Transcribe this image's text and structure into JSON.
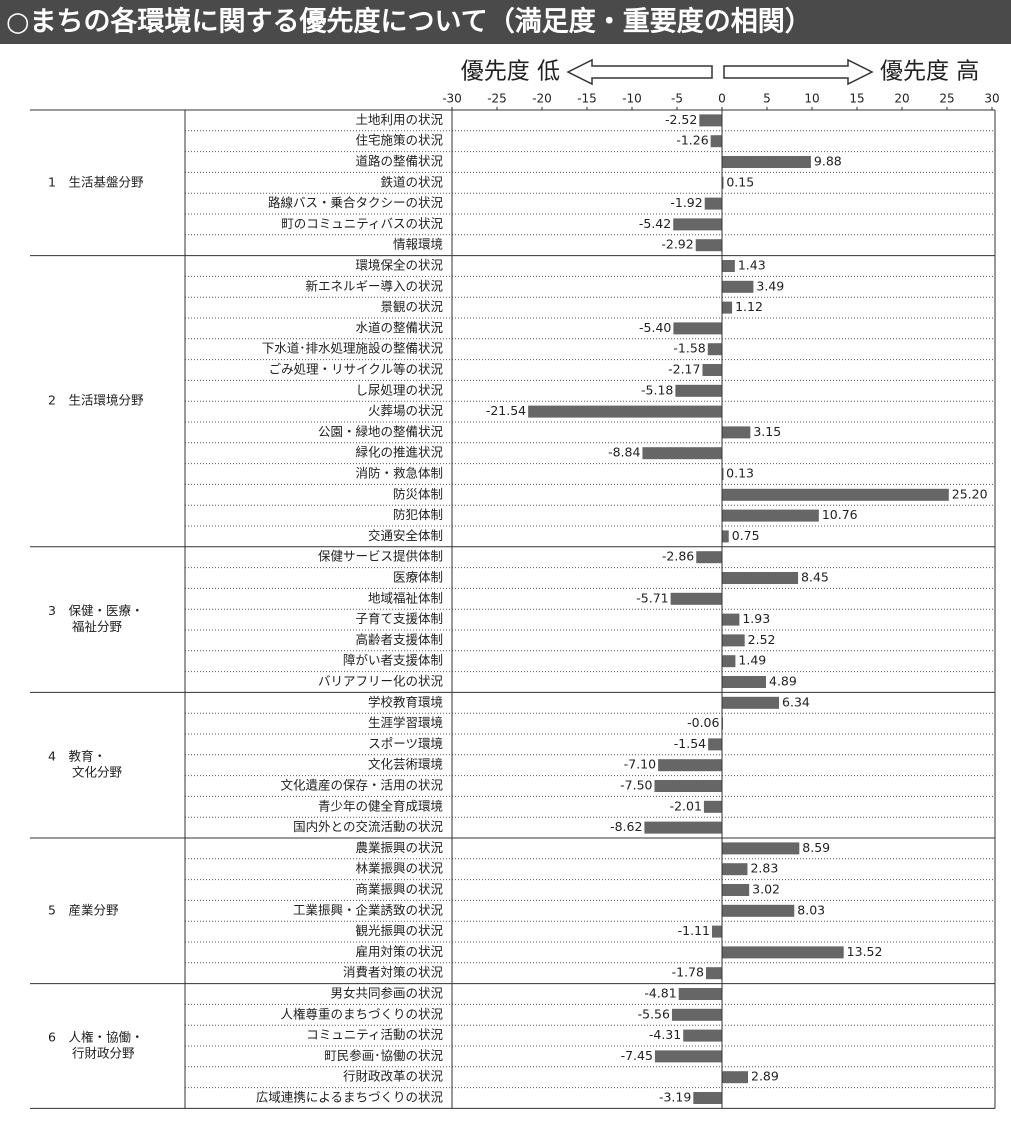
{
  "chart_data": {
    "type": "bar",
    "orientation": "horizontal",
    "title": "○まちの各環境に関する優先度について（満足度・重要度の相関）",
    "low_label": "優先度 低",
    "high_label": "優先度 高",
    "xlim": [
      -30,
      30
    ],
    "xticks": [
      -30,
      -25,
      -20,
      -15,
      -10,
      -5,
      0,
      5,
      10,
      15,
      20,
      25,
      30
    ],
    "color": "#666666",
    "groups": [
      {
        "name": [
          "1　生活基盤分野"
        ],
        "categories": [
          "土地利用の状況",
          "住宅施策の状況",
          "道路の整備状況",
          "鉄道の状況",
          "路線バス・乗合タクシーの状況",
          "町のコミュニティバスの状況",
          "情報環境"
        ],
        "values": [
          -2.52,
          -1.26,
          9.88,
          0.15,
          -1.92,
          -5.42,
          -2.92
        ],
        "value_labels": [
          "-2.52",
          "-1.26",
          "9.88",
          "0.15",
          "-1.92",
          "-5.42",
          "-2.92"
        ]
      },
      {
        "name": [
          "2　生活環境分野"
        ],
        "categories": [
          "環境保全の状況",
          "新エネルギー導入の状況",
          "景観の状況",
          "水道の整備状況",
          "下水道･排水処理施設の整備状況",
          "ごみ処理・リサイクル等の状況",
          "し尿処理の状況",
          "火葬場の状況",
          "公園・緑地の整備状況",
          "緑化の推進状況",
          "消防・救急体制",
          "防災体制",
          "防犯体制",
          "交通安全体制"
        ],
        "values": [
          1.43,
          3.49,
          1.12,
          -5.4,
          -1.58,
          -2.17,
          -5.18,
          -21.54,
          3.15,
          -8.84,
          0.13,
          25.2,
          10.76,
          0.75
        ],
        "value_labels": [
          "1.43",
          "3.49",
          "1.12",
          "-5.40",
          "-1.58",
          "-2.17",
          "-5.18",
          "-21.54",
          "3.15",
          "-8.84",
          "0.13",
          "25.20",
          "10.76",
          "0.75"
        ]
      },
      {
        "name": [
          "3　保健・医療・",
          "福祉分野"
        ],
        "categories": [
          "保健サービス提供体制",
          "医療体制",
          "地域福祉体制",
          "子育て支援体制",
          "高齢者支援体制",
          "障がい者支援体制",
          "バリアフリー化の状況"
        ],
        "values": [
          -2.86,
          8.45,
          -5.71,
          1.93,
          2.52,
          1.49,
          4.89
        ],
        "value_labels": [
          "-2.86",
          "8.45",
          "-5.71",
          "1.93",
          "2.52",
          "1.49",
          "4.89"
        ]
      },
      {
        "name": [
          "4　教育・",
          "文化分野"
        ],
        "categories": [
          "学校教育環境",
          "生涯学習環境",
          "スポーツ環境",
          "文化芸術環境",
          "文化遺産の保存・活用の状況",
          "青少年の健全育成環境",
          "国内外との交流活動の状況"
        ],
        "values": [
          6.34,
          -0.06,
          -1.54,
          -7.1,
          -7.5,
          -2.01,
          -8.62
        ],
        "value_labels": [
          "6.34",
          "-0.06",
          "-1.54",
          "-7.10",
          "-7.50",
          "-2.01",
          "-8.62"
        ]
      },
      {
        "name": [
          "5　産業分野"
        ],
        "categories": [
          "農業振興の状況",
          "林業振興の状況",
          "商業振興の状況",
          "工業振興・企業誘致の状況",
          "観光振興の状況",
          "雇用対策の状況",
          "消費者対策の状況"
        ],
        "values": [
          8.59,
          2.83,
          3.02,
          8.03,
          -1.11,
          13.52,
          -1.78
        ],
        "value_labels": [
          "8.59",
          "2.83",
          "3.02",
          "8.03",
          "-1.11",
          "13.52",
          "-1.78"
        ]
      },
      {
        "name": [
          "6　人権・協働・",
          "行財政分野"
        ],
        "categories": [
          "男女共同参画の状況",
          "人権尊重のまちづくりの状況",
          "コミュニティ活動の状況",
          "町民参画･協働の状況",
          "行財政改革の状況",
          "広域連携によるまちづくりの状況"
        ],
        "values": [
          -4.81,
          -5.56,
          -4.31,
          -7.45,
          2.89,
          -3.19
        ],
        "value_labels": [
          "-4.81",
          "-5.56",
          "-4.31",
          "-7.45",
          "2.89",
          "-3.19"
        ]
      }
    ]
  }
}
